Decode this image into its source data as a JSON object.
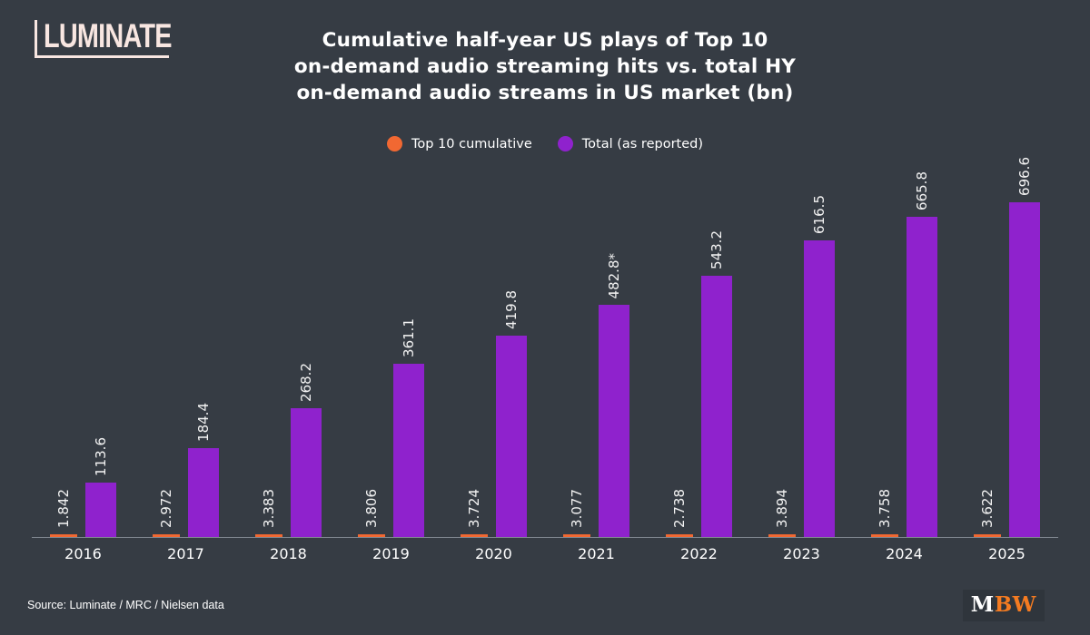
{
  "background_color": "#363c44",
  "logo": {
    "text": "LUMINATE",
    "color": "#f8e6e1"
  },
  "title": {
    "lines": [
      "Cumulative half-year US plays of Top 10",
      "on-demand audio streaming hits vs. total HY",
      "on-demand audio streams in US market (bn)"
    ]
  },
  "legend": [
    {
      "label": "Top 10 cumulative",
      "color": "#f16832"
    },
    {
      "label": "Total (as reported)",
      "color": "#8f22cd"
    }
  ],
  "chart_data": {
    "type": "bar",
    "categories": [
      "2016",
      "2017",
      "2018",
      "2019",
      "2020",
      "2021",
      "2022",
      "2023",
      "2024",
      "2025"
    ],
    "series": [
      {
        "name": "Top 10 cumulative",
        "color": "#f16832",
        "values": [
          1.842,
          2.972,
          3.383,
          3.806,
          3.724,
          3.077,
          2.738,
          3.894,
          3.758,
          3.622
        ],
        "labels": [
          "1.842",
          "2.972",
          "3.383",
          "3.806",
          "3.724",
          "3.077",
          "2.738",
          "3.894",
          "3.758",
          "3.622"
        ]
      },
      {
        "name": "Total (as reported)",
        "color": "#8f22cd",
        "values": [
          113.6,
          184.4,
          268.2,
          361.1,
          419.8,
          482.8,
          543.2,
          616.5,
          665.8,
          696.6
        ],
        "labels": [
          "113.6",
          "184.4",
          "268.2",
          "361.1",
          "419.8",
          "482.8*",
          "543.2",
          "616.5",
          "665.8",
          "696.6"
        ]
      }
    ],
    "title": "Cumulative half-year US plays of Top 10 on-demand audio streaming hits vs. total HY on-demand audio streams in US market (bn)",
    "xlabel": "",
    "ylabel": "",
    "ylim": [
      0,
      740
    ],
    "grid": false,
    "legend_position": "top",
    "value_label_rotation": 90,
    "axis_line_color": "#7e858e"
  },
  "footer": {
    "source": "Source: Luminate / MRC / Nielsen data",
    "mbw": {
      "m": "M",
      "bw": "BW",
      "m_color": "#ffffff",
      "bw_color": "#f47b21"
    }
  }
}
